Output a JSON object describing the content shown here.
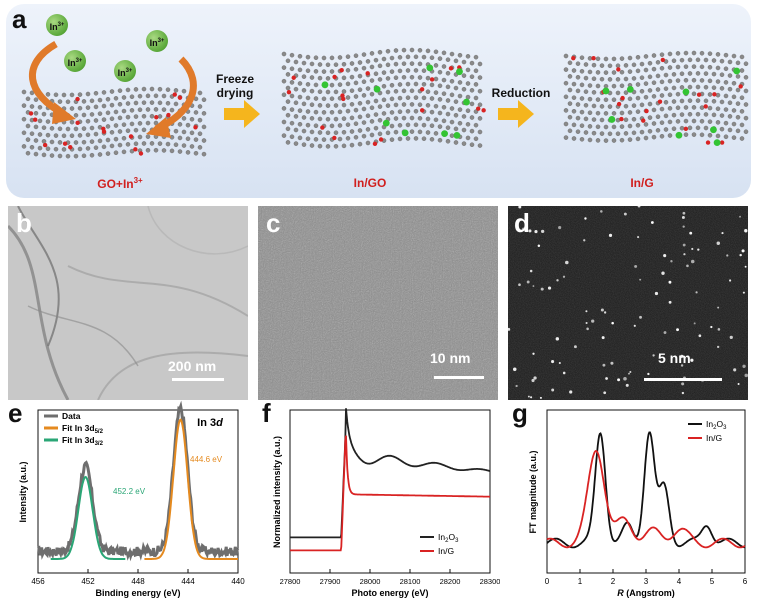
{
  "panel_a": {
    "letter": "a",
    "ion_label": "In",
    "ion_charge": "3+",
    "step1": [
      "Freeze",
      "drying"
    ],
    "step2": "Reduction",
    "label_gomix": "GO+In",
    "label_gomix_sup": "3+",
    "label_ingo": "In/GO",
    "label_ing": "In/G",
    "colors": {
      "carbon": "#8a8a8a",
      "oxygen": "#d92323",
      "indium": "#33c433",
      "arrow": "#f5b51d",
      "curved_arrow": "#e07a2a"
    }
  },
  "panel_b": {
    "letter": "b",
    "scale": "200 nm"
  },
  "panel_c": {
    "letter": "c",
    "scale": "10 nm"
  },
  "panel_d": {
    "letter": "d",
    "scale": "5 nm"
  },
  "chart_data": [
    {
      "panel": "e",
      "type": "line",
      "title": "In 3d",
      "xlabel": "Binding energy (eV)",
      "ylabel": "Intensity (a.u.)",
      "xlim": [
        456,
        440
      ],
      "xticks": [
        "456",
        "452",
        "448",
        "444",
        "440"
      ],
      "x_reversed": true,
      "legend": [
        "Data",
        "Fit In 3d5/2",
        "Fit In 3d3/2"
      ],
      "legend_position": "top-left",
      "series": [
        {
          "name": "Data",
          "color": "#6e6e6e",
          "peaks": [
            {
              "x": 452.2,
              "h": 0.55
            },
            {
              "x": 444.6,
              "h": 0.92
            }
          ],
          "baseline": 0.05
        },
        {
          "name": "Fit In 3d5/2",
          "color": "#e58a1f",
          "peaks": [
            {
              "x": 444.6,
              "h": 0.9
            }
          ]
        },
        {
          "name": "Fit In 3d3/2",
          "color": "#2aa676",
          "peaks": [
            {
              "x": 452.2,
              "h": 0.53
            }
          ]
        }
      ],
      "annotations": [
        "452.2 eV",
        "444.6 eV"
      ]
    },
    {
      "panel": "f",
      "type": "line",
      "xlabel": "Photo energy (eV)",
      "ylabel": "Normalized intensity (a.u.)",
      "xlim": [
        27800,
        28300
      ],
      "xticks": [
        "27800",
        "27900",
        "28000",
        "28100",
        "28200",
        "28300"
      ],
      "legend_position": "bottom-right",
      "series": [
        {
          "name": "In2O3",
          "color": "#222222",
          "edge": 27940,
          "pre": 0.12,
          "post": 0.75
        },
        {
          "name": "In/G",
          "color": "#d92323",
          "edge": 27940,
          "pre": 0.02,
          "post": 0.45
        }
      ]
    },
    {
      "panel": "g",
      "type": "line",
      "xlabel": "R (Angstrom)",
      "ylabel": "FT magnitude (a.u.)",
      "xlim": [
        0,
        6
      ],
      "xticks": [
        "0",
        "1",
        "2",
        "3",
        "4",
        "5",
        "6"
      ],
      "legend_position": "top-right",
      "series": [
        {
          "name": "In2O3",
          "color": "#111111",
          "peaks": [
            {
              "x": 1.62,
              "h": 1.0
            },
            {
              "x": 2.45,
              "h": 0.15
            },
            {
              "x": 3.1,
              "h": 1.0
            },
            {
              "x": 3.55,
              "h": 0.5
            },
            {
              "x": 4.85,
              "h": 0.18
            }
          ]
        },
        {
          "name": "In/G",
          "color": "#d92323",
          "peaks": [
            {
              "x": 1.5,
              "h": 0.85
            },
            {
              "x": 2.35,
              "h": 0.2
            },
            {
              "x": 3.2,
              "h": 0.1
            },
            {
              "x": 4.0,
              "h": 0.12
            }
          ]
        }
      ]
    }
  ],
  "plot_text": {
    "e_letter": "e",
    "f_letter": "f",
    "g_letter": "g",
    "e_title": "In 3d",
    "e_ann1": "452.2 eV",
    "e_ann2": "444.6 eV",
    "e_leg": [
      "Data",
      "Fit In 3d",
      "5/2",
      "Fit In 3d",
      "3/2"
    ],
    "f_leg": [
      "In",
      "2",
      "O",
      "3",
      "In/G"
    ],
    "g_leg": [
      "In",
      "2",
      "O",
      "3",
      "In/G"
    ]
  }
}
